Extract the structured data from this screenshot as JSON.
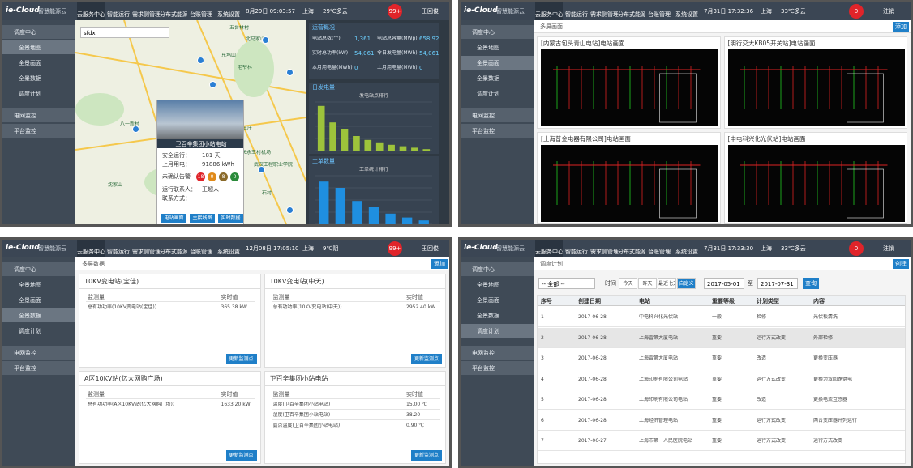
{
  "common": {
    "logo": "ie-Cloud",
    "brand": "智慧能源云",
    "nav": [
      "云服务中心",
      "智能运行",
      "需求侧管理",
      "分布式能源",
      "台账管理",
      "系统设置"
    ],
    "sidebar": [
      "调度中心",
      "全景地图",
      "全景画面",
      "全景数据",
      "调度计划",
      "电网监控",
      "平台监控"
    ]
  },
  "screens": [
    {
      "datetime": "8月29日 09:03:57",
      "city": "上海",
      "weather": "29℃多云",
      "badge": "99+",
      "user": "王回俊",
      "active": 1,
      "search": "sfdx",
      "map_labels": [
        "五台林村",
        "北马家山",
        "东坞山",
        "老爷林",
        "八一新村",
        "长永王村机场",
        "武汉工程职业学院",
        "沈家山",
        "石村",
        "中王庄"
      ],
      "popup": {
        "title": "卫百辛集团小站电站",
        "rows": [
          [
            "安全运行：",
            "181 天"
          ],
          [
            "上月用电：",
            "91886 kWh"
          ]
        ],
        "alarm_label": "未确认告警",
        "alarm_counts": [
          18,
          0,
          8,
          0
        ],
        "contact_rows": [
          "运行联系人：",
          "联系方式："
        ],
        "contact_name": "王超人",
        "buttons": [
          "电站画面",
          "主接线图",
          "实时数据"
        ]
      },
      "stats_title": "运营概况",
      "stats": [
        {
          "label": "电站总数(个)",
          "value": "1,361"
        },
        {
          "label": "电站总容量(MWp)",
          "value": "658,922"
        },
        {
          "label": "实时总功率(kW)",
          "value": "54,061"
        },
        {
          "label": "今日发电量(MWh)",
          "value": "54,061"
        },
        {
          "label": "本月用电量(MWh)",
          "value": "0"
        },
        {
          "label": "上月用电量(MWh)",
          "value": "0"
        }
      ],
      "charts": [
        {
          "title": "日发电量",
          "subtitle": "发电站点排行",
          "color": "#9dc33b",
          "values": [
            92,
            58,
            45,
            30,
            22,
            17,
            12,
            9,
            6,
            3
          ],
          "ylim": [
            0,
            100
          ]
        },
        {
          "title": "工单数量",
          "subtitle": "工单统计排行",
          "color": "#1f8fe0",
          "values": [
            88,
            75,
            48,
            35,
            22,
            14,
            8
          ],
          "ylim": [
            0,
            100
          ]
        }
      ]
    },
    {
      "title": "多屏画面",
      "button": "添加",
      "datetime": "7月31日 17:32:36",
      "city": "上海",
      "weather": "33℃多云",
      "badge": "0",
      "user": "注销",
      "active": 2,
      "cards": [
        "[内蒙古包头青山电站]电站画面",
        "[明行交大KB05开关站]电站画面",
        "[上海普金电器有限公司]电站画面",
        "[中电科兴化光伏站]电站画面"
      ]
    },
    {
      "title": "多屏数据",
      "button": "添加",
      "datetime": "12月08日 17:05:10",
      "city": "上海",
      "weather": "9℃阴",
      "badge": "99+",
      "user": "王回俊",
      "active": 3,
      "cards": [
        {
          "title": "10KV变电站(宝佳)",
          "header": [
            "监测量",
            "实时值"
          ],
          "rows": [
            [
              "总有功功率(10KV变电站(宝佳))",
              "365.38 kW"
            ]
          ],
          "button": "更新监测点"
        },
        {
          "title": "10KV变电站(中天)",
          "header": [
            "监测量",
            "实时值"
          ],
          "rows": [
            [
              "总有功功率(10KV变电站(中天))",
              "2952.40 kW"
            ]
          ],
          "button": "更新监测点"
        },
        {
          "title": "A区10KV站(亿大网购广场)",
          "header": [
            "监测量",
            "实时值"
          ],
          "rows": [
            [
              "总有功功率(A区10KV站(亿大网购广场))",
              "1633.20 kW"
            ]
          ],
          "button": "更新监测点"
        },
        {
          "title": "卫百辛集团小站电站",
          "header": [
            "监测量",
            "实时值"
          ],
          "rows": [
            [
              "温度(卫百辛集团小站电站)",
              "15.00 ℃"
            ],
            [
              "湿度(卫百辛集团小站电站)",
              "38.20"
            ],
            [
              "露点温度(卫百辛集团小站电站)",
              "0.90 ℃"
            ]
          ],
          "button": "更新监测点"
        }
      ]
    },
    {
      "title": "调度计划",
      "button": "创建",
      "datetime": "7月31日 17:33:30",
      "city": "上海",
      "weather": "33℃多云",
      "badge": "0",
      "user": "注销",
      "active": 4,
      "filter": {
        "select": "-- 全部 --",
        "time_label": "时间",
        "ranges": [
          "今天",
          "昨天",
          "最近七天",
          "自定义"
        ],
        "from": "2017-05-01",
        "to_label": "至",
        "to": "2017-07-31",
        "query": "查询"
      },
      "columns": [
        "序号",
        "创建日期",
        "电站",
        "重要等级",
        "计划类型",
        "内容"
      ],
      "rows": [
        [
          "1",
          "2017-06-28",
          "中电科兴化光伏站",
          "一般",
          "检修",
          "光伏板清洗"
        ],
        [
          "2",
          "2017-06-28",
          "上海雷第大厦电站",
          "重要",
          "运行方式改变",
          "外部检修"
        ],
        [
          "3",
          "2017-06-28",
          "上海雷第大厦电站",
          "重要",
          "改造",
          "更换变压器"
        ],
        [
          "4",
          "2017-06-28",
          "上海印刷有限公司电站",
          "重要",
          "运行方式改变",
          "更换为双回路供电"
        ],
        [
          "5",
          "2017-06-28",
          "上海印刷有限公司电站",
          "重要",
          "改造",
          "更换电流互感器"
        ],
        [
          "6",
          "2017-06-28",
          "上海经济管理电站",
          "重要",
          "运行方式改变",
          "两台变压器并列运行"
        ],
        [
          "7",
          "2017-06-27",
          "上海市第一人民医院电站",
          "重要",
          "运行方式改变",
          "运行方式改变"
        ]
      ]
    }
  ]
}
